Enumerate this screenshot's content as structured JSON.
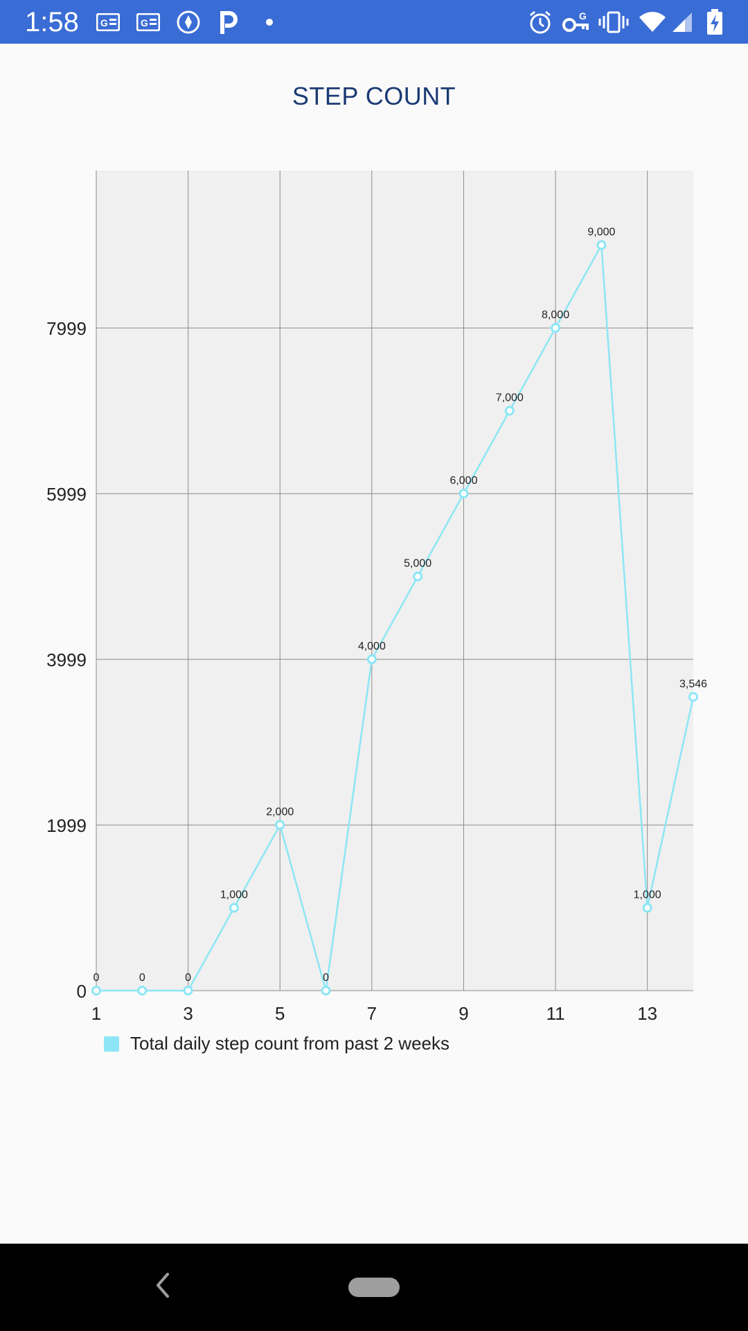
{
  "status_bar": {
    "time": "1:58",
    "left_icons": [
      "news-icon",
      "news-icon",
      "location-icon",
      "p-icon",
      "dot-icon"
    ],
    "right_icons": [
      "alarm-icon",
      "vpn-key-icon",
      "vibrate-icon",
      "wifi-icon",
      "signal-icon",
      "battery-charging-icon"
    ],
    "background": "#3a6cd6"
  },
  "page": {
    "title": "STEP COUNT"
  },
  "chart_data": {
    "type": "line",
    "title": "STEP COUNT",
    "x": [
      1,
      2,
      3,
      4,
      5,
      6,
      7,
      8,
      9,
      10,
      11,
      12,
      13,
      14
    ],
    "x_ticks": [
      "1",
      "3",
      "5",
      "7",
      "9",
      "11",
      "13"
    ],
    "y_ticks": [
      "0",
      "1999",
      "3999",
      "5999",
      "7999"
    ],
    "ylim": [
      0,
      9900
    ],
    "xlim": [
      1,
      14
    ],
    "grid": true,
    "series": [
      {
        "name": "Total daily step count from past 2 weeks",
        "values": [
          0,
          0,
          0,
          1000,
          2000,
          0,
          4000,
          5000,
          6000,
          7000,
          8000,
          9000,
          1000,
          3546
        ],
        "labels": [
          "0",
          "0",
          "0",
          "1,000",
          "2,000",
          "0",
          "4,000",
          "5,000",
          "6,000",
          "7,000",
          "8,000",
          "9,000",
          "1,000",
          "3,546"
        ],
        "color": "#8ce6f5"
      }
    ],
    "legend": "bottom-left"
  },
  "nav_bar": {
    "buttons": [
      "back-icon",
      "home-pill"
    ]
  }
}
